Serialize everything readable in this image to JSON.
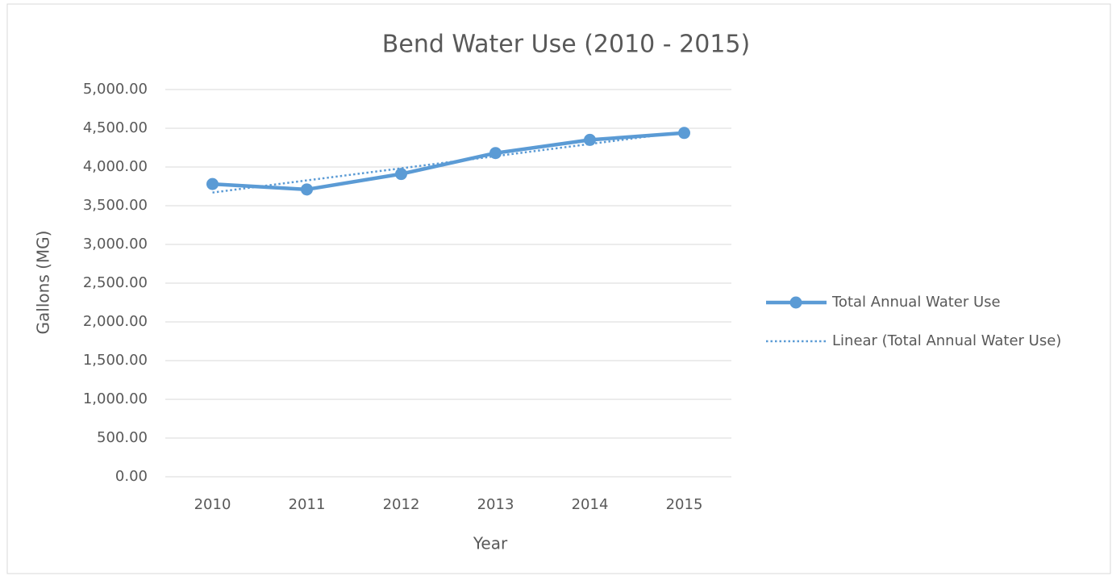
{
  "chart_data": {
    "type": "line",
    "title": "Bend Water Use (2010 - 2015)",
    "x_label": "Year",
    "y_label": "Gallons (MG)",
    "categories": [
      "2010",
      "2011",
      "2012",
      "2013",
      "2014",
      "2015"
    ],
    "series": [
      {
        "name": "Total Annual Water Use",
        "color": "#5b9bd5",
        "style": "solid",
        "markers": true,
        "values": [
          3780,
          3710,
          3910,
          4180,
          4350,
          4440
        ]
      },
      {
        "name": "Linear (Total Annual Water Use)",
        "color": "#5b9bd5",
        "style": "dotted",
        "markers": false,
        "values": [
          3670,
          3827,
          3983,
          4140,
          4297,
          4454
        ]
      }
    ],
    "ylim": [
      0,
      5000
    ],
    "yticks": [
      {
        "value": 0,
        "label": "0.00"
      },
      {
        "value": 500,
        "label": "500.00"
      },
      {
        "value": 1000,
        "label": "1,000.00"
      },
      {
        "value": 1500,
        "label": "1,500.00"
      },
      {
        "value": 2000,
        "label": "2,000.00"
      },
      {
        "value": 2500,
        "label": "2,500.00"
      },
      {
        "value": 3000,
        "label": "3,000.00"
      },
      {
        "value": 3500,
        "label": "3,500.00"
      },
      {
        "value": 4000,
        "label": "4,000.00"
      },
      {
        "value": 4500,
        "label": "4,500.00"
      },
      {
        "value": 5000,
        "label": "5,000.00"
      }
    ],
    "grid": true,
    "legend": "right"
  }
}
